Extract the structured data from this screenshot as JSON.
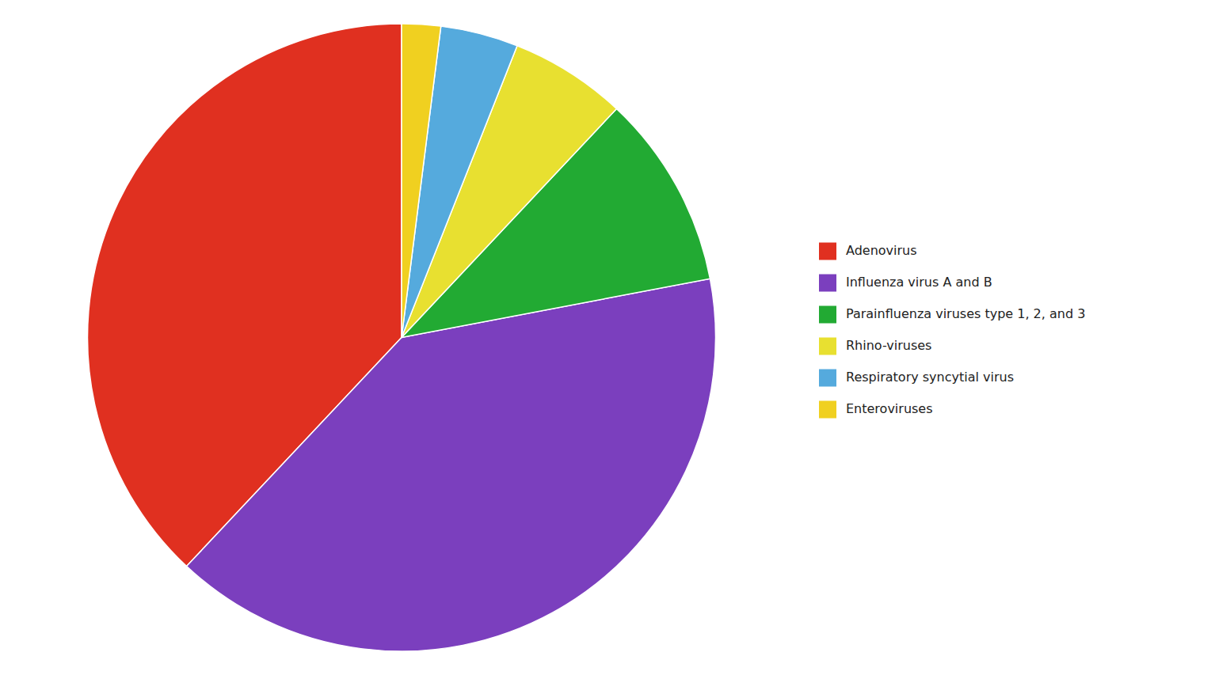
{
  "chart_data": {
    "type": "pie",
    "categories": [
      "Adenovirus",
      "Influenza virus A and B",
      "Parainfluenza viruses type 1, 2, and 3",
      "Rhino-viruses",
      "Respiratory syncytial virus",
      "Enteroviruses"
    ],
    "values": [
      38,
      40,
      10,
      6,
      4,
      2
    ],
    "colors": [
      "#e03020",
      "#7b3fbe",
      "#22aa33",
      "#e8e030",
      "#55aadd",
      "#f0d020"
    ],
    "legend": "right"
  }
}
